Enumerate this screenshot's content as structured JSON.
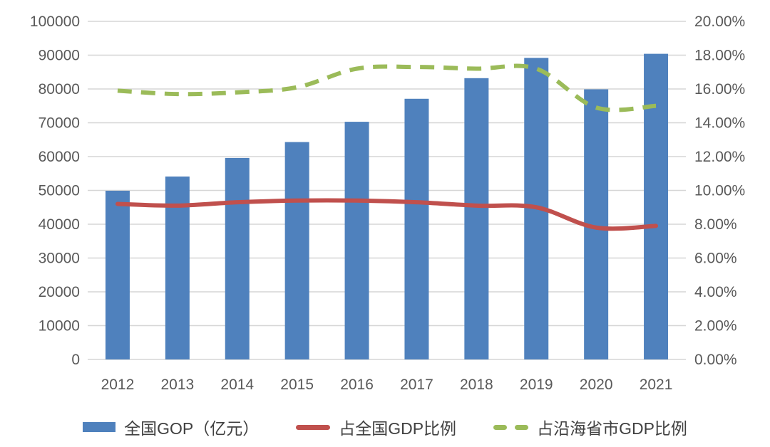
{
  "chart_data": {
    "type": "combo-bar-line",
    "title": "",
    "categories": [
      "2012",
      "2013",
      "2014",
      "2015",
      "2016",
      "2017",
      "2018",
      "2019",
      "2020",
      "2021"
    ],
    "series": [
      {
        "name": "全国GOP（亿元）",
        "type": "bar",
        "axis": "left",
        "color": "#4F81BD",
        "values": [
          49900,
          54100,
          59600,
          64300,
          70300,
          77100,
          83200,
          89200,
          79900,
          90400
        ]
      },
      {
        "name": "占全国GDP比例",
        "type": "line",
        "line_style": "solid",
        "axis": "right",
        "color": "#C0504D",
        "values_percent": [
          9.2,
          9.1,
          9.3,
          9.4,
          9.4,
          9.3,
          9.1,
          9.0,
          7.8,
          7.9
        ]
      },
      {
        "name": "占沿海省市GDP比例",
        "type": "line",
        "line_style": "dashed",
        "axis": "right",
        "color": "#9BBB59",
        "values_percent": [
          15.9,
          15.7,
          15.8,
          16.1,
          17.2,
          17.3,
          17.2,
          17.2,
          14.9,
          15.0
        ]
      }
    ],
    "left_axis": {
      "min": 0,
      "max": 100000,
      "tick_labels": [
        "0",
        "10000",
        "20000",
        "30000",
        "40000",
        "50000",
        "60000",
        "70000",
        "80000",
        "90000",
        "100000"
      ]
    },
    "right_axis": {
      "min": 0,
      "max": 20,
      "tick_labels": [
        "0.00%",
        "2.00%",
        "4.00%",
        "6.00%",
        "8.00%",
        "10.00%",
        "12.00%",
        "14.00%",
        "16.00%",
        "18.00%",
        "20.00%"
      ]
    },
    "grid": true,
    "legend_position": "bottom",
    "colors": {
      "grid": "#D6D6D6",
      "axis_text": "#595959",
      "legend_text": "#404040",
      "background": "#FFFFFF"
    }
  }
}
